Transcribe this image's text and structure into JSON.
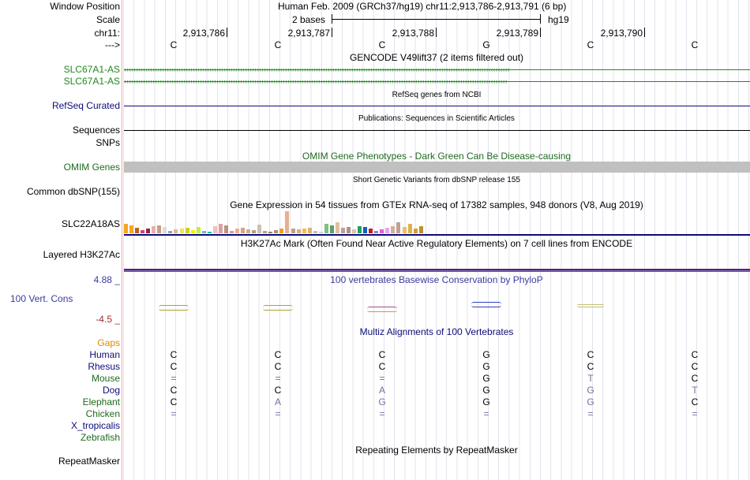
{
  "header": {
    "window_position_label": "Window Position",
    "window_position_value": "Human Feb. 2009 (GRCh37/hg19)   chr11:2,913,786-2,913,791 (6 bp)",
    "scale_label": "Scale",
    "scale_value": "2 bases",
    "assembly": "hg19",
    "chrom_label": "chr11:",
    "arrow_label": "--->",
    "positions": [
      "2,913,786",
      "2,913,787",
      "2,913,788",
      "2,913,789",
      "2,913,790"
    ]
  },
  "reference_bases": [
    "C",
    "C",
    "C",
    "G",
    "C",
    "C"
  ],
  "tracks": {
    "gencode": {
      "title": "GENCODE V49lift37 (2 items filtered out)",
      "items": [
        "SLC67A1-AS",
        "SLC67A1-AS"
      ],
      "color": "#1f8a1f"
    },
    "refseq": {
      "label": "RefSeq Curated",
      "title": "RefSeq genes from NCBI",
      "color": "#0c0c78"
    },
    "sequences": {
      "label": "Sequences",
      "title": "Publications: Sequences in Scientific Articles"
    },
    "snps": {
      "label": "SNPs"
    },
    "omim": {
      "label": "OMIM Genes",
      "title": "OMIM Gene Phenotypes - Dark Green Can Be Disease-causing",
      "color": "#1f6a1f"
    },
    "dbsnp": {
      "label": "Common dbSNP(155)",
      "title": "Short Genetic Variants from dbSNP release 155"
    },
    "gtex": {
      "label": "SLC22A18AS",
      "title": "Gene Expression in 54 tissues from GTEx RNA-seq of 17382 samples, 948 donors (V8, Aug 2019)"
    },
    "h3k27ac": {
      "label": "Layered H3K27Ac",
      "title": "H3K27Ac Mark (Often Found Near Active Regulatory Elements) on 7 cell lines from ENCODE"
    },
    "cons": {
      "label": "100 Vert. Cons",
      "title": "100 vertebrates Basewise Conservation by PhyloP",
      "ymax": "4.88 _",
      "ymin": "-4.5 _",
      "color": "#3b3ba0"
    },
    "multiz": {
      "title": "Multiz Alignments of 100 Vertebrates",
      "gaps_label": "Gaps",
      "species": [
        {
          "name": "Human",
          "color": "#0c0c78",
          "bases": [
            "C",
            "C",
            "C",
            "G",
            "C",
            "C"
          ]
        },
        {
          "name": "Rhesus",
          "color": "#0c0c78",
          "bases": [
            "C",
            "C",
            "C",
            "G",
            "C",
            "C"
          ]
        },
        {
          "name": "Mouse",
          "color": "#1f6a1f",
          "bases": [
            "=",
            "=",
            "=",
            "G",
            "T",
            "C"
          ]
        },
        {
          "name": "Dog",
          "color": "#0c0c78",
          "bases": [
            "C",
            "C",
            "A",
            "G",
            "G",
            "T"
          ]
        },
        {
          "name": "Elephant",
          "color": "#1f6a1f",
          "bases": [
            "C",
            "A",
            "G",
            "G",
            "G",
            "C"
          ]
        },
        {
          "name": "Chicken",
          "color": "#1f6a1f",
          "bases": [
            "=",
            "=",
            "=",
            "=",
            "=",
            "="
          ]
        },
        {
          "name": "X_tropicalis",
          "color": "#0c0c78",
          "bases": [
            "",
            "",
            "",
            "",
            "",
            ""
          ]
        },
        {
          "name": "Zebrafish",
          "color": "#1f6a1f",
          "bases": [
            "",
            "",
            "",
            "",
            "",
            ""
          ]
        }
      ]
    },
    "repeatmasker": {
      "label": "RepeatMasker",
      "title": "Repeating Elements by RepeatMasker"
    }
  },
  "gtex_values": [
    12,
    10,
    7,
    4,
    6,
    9,
    10,
    8,
    3,
    5,
    6,
    7,
    4,
    8,
    3,
    2,
    9,
    12,
    10,
    3,
    6,
    7,
    5,
    4,
    11,
    3,
    2,
    4,
    6,
    28,
    6,
    5,
    6,
    7,
    3,
    2,
    12,
    10,
    14,
    7,
    8,
    5,
    9,
    8,
    6,
    3,
    5,
    7,
    9,
    14,
    8,
    12,
    6,
    9
  ],
  "gtex_colors": [
    "#f5a623",
    "#f5a623",
    "#c06018",
    "#c04b80",
    "#a02040",
    "#e8b0b0",
    "#c8a080",
    "#dcdcdc",
    "#a0a0a0",
    "#d0c0a0",
    "#f0e060",
    "#d0d000",
    "#f0f000",
    "#c0f040",
    "#60c0c0",
    "#20c0b0",
    "#f0c0c0",
    "#e0a0a0",
    "#c09080",
    "#d0a090",
    "#f0b090",
    "#e0a080",
    "#c8b090",
    "#b8a080",
    "#d0c0b0",
    "#c0a080",
    "#a08060",
    "#b09070",
    "#f0a020",
    "#e8b090",
    "#c0a080",
    "#d0b090",
    "#f0c040",
    "#e0b070",
    "#c0c0c0",
    "#d0d0d0",
    "#80c080",
    "#60a060",
    "#e0c0a0",
    "#c0a090",
    "#b09080",
    "#e0c0b0",
    "#20a060",
    "#1060c0",
    "#c02020",
    "#a080e0",
    "#e060e0",
    "#f0a0f0",
    "#d0b0a0",
    "#c0a090",
    "#f0c060",
    "#e0b050",
    "#d0a040",
    "#c09030"
  ],
  "cons_marks": [
    {
      "col": 0,
      "kind": "olive"
    },
    {
      "col": 1,
      "kind": "olive"
    },
    {
      "col": 2,
      "kind": "mixed"
    },
    {
      "col": 3,
      "kind": "blue"
    },
    {
      "col": 4,
      "kind": "faint"
    }
  ]
}
